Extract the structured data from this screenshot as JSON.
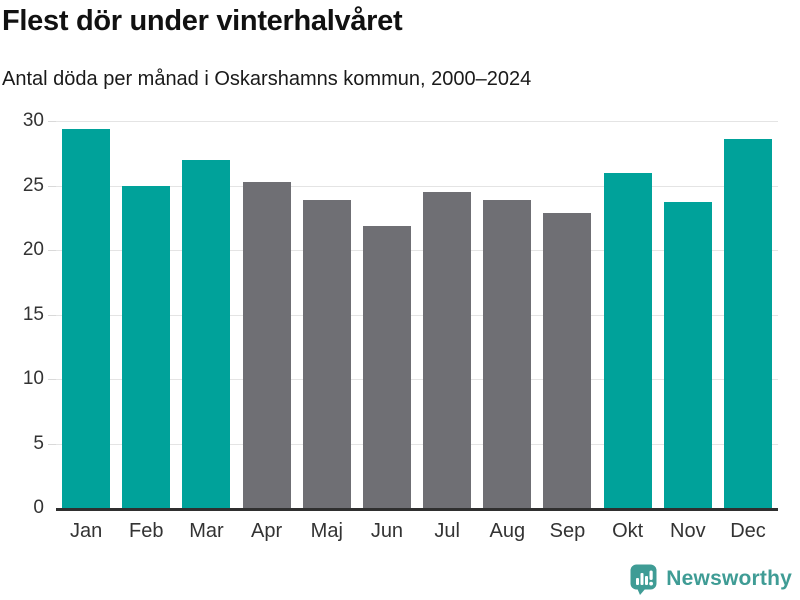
{
  "header": {
    "title": "Flest dör under vinterhalvåret",
    "subtitle": "Antal döda per månad i Oskarshamns kommun, 2000–2024"
  },
  "chart_data": {
    "type": "bar",
    "title": "Flest dör under vinterhalvåret",
    "subtitle": "Antal döda per månad i Oskarshamns kommun, 2000–2024",
    "categories": [
      "Jan",
      "Feb",
      "Mar",
      "Apr",
      "Maj",
      "Jun",
      "Jul",
      "Aug",
      "Sep",
      "Okt",
      "Nov",
      "Dec"
    ],
    "values": [
      29.4,
      25.0,
      27.0,
      25.3,
      23.9,
      21.9,
      24.5,
      23.9,
      22.9,
      26.0,
      23.7,
      28.6
    ],
    "bar_color_keys": [
      "winter",
      "winter",
      "winter",
      "summer",
      "summer",
      "summer",
      "summer",
      "summer",
      "summer",
      "winter",
      "winter",
      "winter"
    ],
    "colors": {
      "winter": "#00a29a",
      "summer": "#6f6f74"
    },
    "xlabel": "",
    "ylabel": "",
    "ylim": [
      0,
      30
    ],
    "yticks": [
      "0",
      "5",
      "10",
      "15",
      "20",
      "25",
      "30"
    ],
    "grid": "horizontal",
    "legend": "none"
  },
  "branding": {
    "icon": "newsworthy-speech-bubble-chart-icon",
    "name": "Newsworthy",
    "color": "#3f9c95"
  }
}
